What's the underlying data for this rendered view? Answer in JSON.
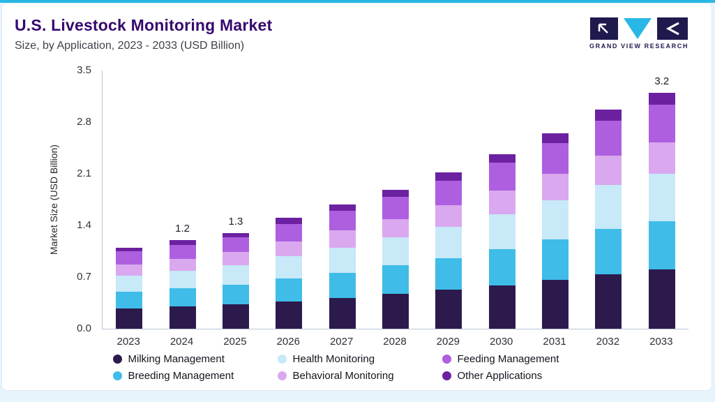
{
  "header": {
    "title": "U.S. Livestock Monitoring Market",
    "subtitle": "Size, by Application, 2023 - 2033 (USD Billion)"
  },
  "logo": {
    "text": "GRAND VIEW RESEARCH",
    "navy": "#1E1A4E",
    "teal": "#29B8E5"
  },
  "colors": {
    "accent_teal": "#29B8E5",
    "title_purple": "#350A6E",
    "page_background": "#E8F4FB",
    "axis_line": "#B9C7D3"
  },
  "chart_data": {
    "type": "bar",
    "stacked": true,
    "title": "U.S. Livestock Monitoring Market Size, by Application, 2023 - 2033 (USD Billion)",
    "xlabel": "",
    "ylabel": "Market Size (USD Billion)",
    "ylim": [
      0,
      3.5
    ],
    "yticks": [
      0,
      0.7,
      1.4,
      2.1,
      2.8,
      3.5
    ],
    "grid": false,
    "legend_position": "bottom",
    "categories": [
      "2023",
      "2024",
      "2025",
      "2026",
      "2027",
      "2028",
      "2029",
      "2030",
      "2031",
      "2032",
      "2033"
    ],
    "series": [
      {
        "name": "Milking Management",
        "color": "#2C1A4D",
        "values": [
          0.27,
          0.3,
          0.33,
          0.37,
          0.42,
          0.47,
          0.53,
          0.59,
          0.66,
          0.74,
          0.8
        ]
      },
      {
        "name": "Breeding Management",
        "color": "#3FBCE8",
        "values": [
          0.23,
          0.25,
          0.27,
          0.31,
          0.34,
          0.39,
          0.43,
          0.49,
          0.55,
          0.61,
          0.66
        ]
      },
      {
        "name": "Health Monitoring",
        "color": "#C7E9F8",
        "values": [
          0.22,
          0.24,
          0.26,
          0.3,
          0.34,
          0.38,
          0.42,
          0.47,
          0.53,
          0.6,
          0.64
        ]
      },
      {
        "name": "Behavioral Monitoring",
        "color": "#D9A8EF",
        "values": [
          0.15,
          0.16,
          0.18,
          0.2,
          0.23,
          0.25,
          0.29,
          0.32,
          0.36,
          0.4,
          0.43
        ]
      },
      {
        "name": "Feeding Management",
        "color": "#AE5FE0",
        "values": [
          0.18,
          0.19,
          0.2,
          0.24,
          0.27,
          0.3,
          0.34,
          0.38,
          0.42,
          0.47,
          0.51
        ]
      },
      {
        "name": "Other Applications",
        "color": "#6C21A0",
        "values": [
          0.05,
          0.06,
          0.06,
          0.08,
          0.08,
          0.09,
          0.11,
          0.12,
          0.13,
          0.15,
          0.16
        ]
      }
    ],
    "totals": [
      1.1,
      1.2,
      1.3,
      1.5,
      1.68,
      1.88,
      2.12,
      2.37,
      2.65,
      2.97,
      3.2
    ],
    "bar_labels": {
      "2024": "1.2",
      "2025": "1.3",
      "2033": "3.2"
    }
  },
  "legend": {
    "rows": [
      [
        {
          "label": "Milking Management",
          "color": "#2C1A4D"
        },
        {
          "label": "Health Monitoring",
          "color": "#C7E9F8"
        },
        {
          "label": "Feeding Management",
          "color": "#AE5FE0"
        }
      ],
      [
        {
          "label": "Breeding Management",
          "color": "#3FBCE8"
        },
        {
          "label": "Behavioral Monitoring",
          "color": "#D9A8EF"
        },
        {
          "label": "Other Applications",
          "color": "#6C21A0"
        }
      ]
    ]
  }
}
